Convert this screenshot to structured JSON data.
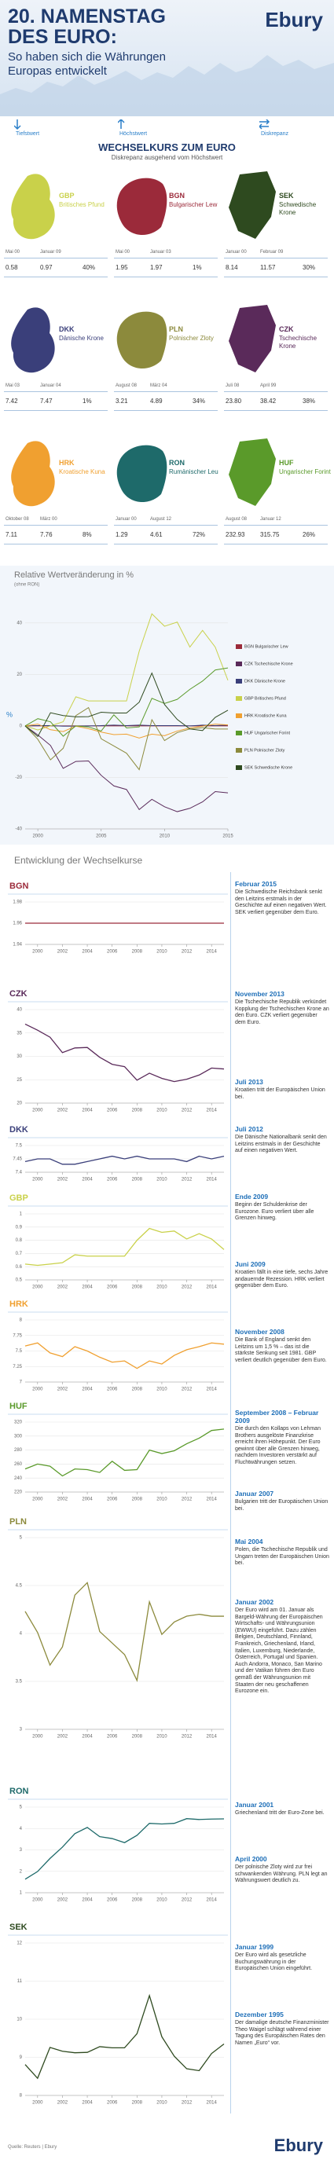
{
  "header": {
    "title": "20. NAMENSTAG DES EURO:",
    "subtitle": "So haben sich die Währungen Europas entwickelt",
    "logo": "Ebury"
  },
  "legend_labels": [
    "Tiefstwert",
    "Höchstwert",
    "Diskrepanz"
  ],
  "cards": {
    "title": "WECHSELKURS ZUM EURO",
    "subtitle": "Diskrepanz ausgehend vom Höchstwert",
    "items": [
      {
        "code": "GBP",
        "name": "Britisches Pfund",
        "color": "#c9d14a",
        "low_date": "Mai 00",
        "high_date": "Januar 09",
        "low": "0.58",
        "high": "0.97",
        "diff": "40%"
      },
      {
        "code": "BGN",
        "name": "Bulgarischer Lew",
        "color": "#9b2a3a",
        "low_date": "Mai 00",
        "high_date": "Januar 03",
        "low": "1.95",
        "high": "1.97",
        "diff": "1%"
      },
      {
        "code": "SEK",
        "name": "Schwedische Krone",
        "color": "#2e4a1f",
        "low_date": "Januar 00",
        "high_date": "Februar 09",
        "low": "8.14",
        "high": "11.57",
        "diff": "30%"
      },
      {
        "code": "DKK",
        "name": "Dänische Krone",
        "color": "#3a3f7a",
        "low_date": "Mai 03",
        "high_date": "Januar 04",
        "low": "7.42",
        "high": "7.47",
        "diff": "1%"
      },
      {
        "code": "PLN",
        "name": "Polnischer Zloty",
        "color": "#8c8a3c",
        "low_date": "August 08",
        "high_date": "März 04",
        "low": "3.21",
        "high": "4.89",
        "diff": "34%"
      },
      {
        "code": "CZK",
        "name": "Tschechische Krone",
        "color": "#5a2a5a",
        "low_date": "Juli 08",
        "high_date": "April 99",
        "low": "23.80",
        "high": "38.42",
        "diff": "38%"
      },
      {
        "code": "HRK",
        "name": "Kroatische Kuna",
        "color": "#f0a030",
        "low_date": "Oktober 08",
        "high_date": "März 00",
        "low": "7.11",
        "high": "7.76",
        "diff": "8%"
      },
      {
        "code": "RON",
        "name": "Rumänischer Leu",
        "color": "#1e6a6a",
        "low_date": "Januar 00",
        "high_date": "August 12",
        "low": "1.29",
        "high": "4.61",
        "diff": "72%"
      },
      {
        "code": "HUF",
        "name": "Ungarischer Forint",
        "color": "#5a9a2a",
        "low_date": "August 08",
        "high_date": "Januar 12",
        "low": "232.93",
        "high": "315.75",
        "diff": "26%"
      }
    ]
  },
  "chart_data": [
    {
      "type": "multiline",
      "title": "Relative Wertveränderung in %",
      "subtitle": "(ohne RON)",
      "y_label": "%",
      "x": [
        1999,
        2000,
        2001,
        2002,
        2003,
        2004,
        2005,
        2006,
        2007,
        2008,
        2009,
        2010,
        2011,
        2012,
        2013,
        2014,
        2015
      ],
      "xlim": [
        1999,
        2015
      ],
      "xticks": [
        2000,
        2005,
        2010,
        2015
      ],
      "ylim": [
        -40,
        50
      ],
      "yticks": [
        -40,
        -20,
        0,
        20,
        40
      ],
      "grid": true,
      "series": [
        {
          "name": "BGN Bulgarischer Lew",
          "color": "#9b2a3a",
          "values": [
            0,
            0,
            0,
            0,
            0,
            0,
            0,
            0,
            0,
            0,
            0,
            0,
            0,
            0,
            0,
            0,
            0
          ]
        },
        {
          "name": "CZK Tschechische Krone",
          "color": "#5a2a5a",
          "values": [
            0,
            -3.5,
            -7.6,
            -16.5,
            -13.8,
            -13.6,
            -19.2,
            -23.3,
            -24.7,
            -32.5,
            -28.5,
            -31.4,
            -33.3,
            -32,
            -29.5,
            -25.5,
            -26
          ]
        },
        {
          "name": "DKK Dänische Krone",
          "color": "#3a3f7a",
          "values": [
            0,
            0.1,
            0.1,
            -0.1,
            -0.1,
            0,
            0.1,
            0.3,
            0.1,
            0.3,
            0.1,
            0.1,
            0.1,
            0,
            0.3,
            0.1,
            0.3
          ]
        },
        {
          "name": "GBP Britisches Pfund",
          "color": "#c9d14a",
          "values": [
            0,
            -1.6,
            0,
            1.6,
            11.3,
            9.7,
            9.7,
            9.7,
            9.7,
            29,
            43.5,
            38.7,
            40.3,
            30.6,
            37.1,
            30.6,
            17.7
          ]
        },
        {
          "name": "HRK Kroatische Kuna",
          "color": "#f0a030",
          "values": [
            0,
            0.7,
            -1.5,
            -2.2,
            -0.1,
            -1.1,
            -2.4,
            -3.4,
            -3.2,
            -4.7,
            -3.2,
            -3.8,
            -2,
            -0.8,
            -0.1,
            0.7,
            0.4
          ]
        },
        {
          "name": "HUF Ungarischer Forint",
          "color": "#5a9a2a",
          "values": [
            0,
            2.8,
            1.6,
            -4,
            0,
            -0.4,
            -2,
            4.3,
            -0.8,
            -0.4,
            10.7,
            8.7,
            10.3,
            14.2,
            17.4,
            21.7,
            22.5
          ]
        },
        {
          "name": "PLN Polnischer Zloty",
          "color": "#8c8a3c",
          "values": [
            0,
            -5.2,
            -13.2,
            -8.7,
            4,
            7.1,
            -5,
            -7.8,
            -10.6,
            -17,
            2.4,
            -5.7,
            -2.6,
            -1.2,
            -0.7,
            -1.2,
            -1.2
          ]
        },
        {
          "name": "SEK Schwedische Krone",
          "color": "#2e4a1f",
          "values": [
            0,
            -4.1,
            5.1,
            4,
            3.5,
            3.6,
            5.3,
            5,
            5,
            9.2,
            20.5,
            8.3,
            2.5,
            -1.2,
            -1.8,
            3.3,
            6.1
          ]
        }
      ]
    },
    {
      "type": "line",
      "title": "BGN",
      "color": "#9b2a3a",
      "x": [
        1999,
        2000,
        2001,
        2002,
        2003,
        2004,
        2005,
        2006,
        2007,
        2008,
        2009,
        2010,
        2011,
        2012,
        2013,
        2014,
        2015
      ],
      "values": [
        1.96,
        1.96,
        1.96,
        1.96,
        1.96,
        1.96,
        1.96,
        1.96,
        1.96,
        1.96,
        1.96,
        1.96,
        1.96,
        1.96,
        1.96,
        1.96,
        1.96
      ],
      "xlim": [
        1999,
        2015
      ],
      "xticks": [
        2000,
        2002,
        2004,
        2006,
        2008,
        2010,
        2012,
        2014
      ],
      "ylim": [
        1.94,
        1.98
      ],
      "yticks": [
        1.94,
        1.96,
        1.98
      ],
      "grid": true
    },
    {
      "type": "line",
      "title": "CZK",
      "color": "#5a2a5a",
      "x": [
        1999,
        2000,
        2001,
        2002,
        2003,
        2004,
        2005,
        2006,
        2007,
        2008,
        2009,
        2010,
        2011,
        2012,
        2013,
        2014,
        2015
      ],
      "values": [
        36.9,
        35.6,
        34.1,
        30.8,
        31.8,
        31.9,
        29.8,
        28.3,
        27.8,
        24.9,
        26.4,
        25.3,
        24.6,
        25.1,
        26,
        27.5,
        27.3
      ],
      "xlim": [
        1999,
        2015
      ],
      "xticks": [
        2000,
        2002,
        2004,
        2006,
        2008,
        2010,
        2012,
        2014
      ],
      "ylim": [
        20,
        40
      ],
      "yticks": [
        20,
        25,
        30,
        35,
        40
      ],
      "grid": true
    },
    {
      "type": "line",
      "title": "DKK",
      "color": "#3a3f7a",
      "x": [
        1999,
        2000,
        2001,
        2002,
        2003,
        2004,
        2005,
        2006,
        2007,
        2008,
        2009,
        2010,
        2011,
        2012,
        2013,
        2014,
        2015
      ],
      "values": [
        7.44,
        7.45,
        7.45,
        7.43,
        7.43,
        7.44,
        7.45,
        7.46,
        7.45,
        7.46,
        7.45,
        7.45,
        7.45,
        7.44,
        7.46,
        7.45,
        7.46
      ],
      "xlim": [
        1999,
        2015
      ],
      "xticks": [
        2000,
        2002,
        2004,
        2006,
        2008,
        2010,
        2012,
        2014
      ],
      "ylim": [
        7.4,
        7.5
      ],
      "yticks": [
        7.4,
        7.45,
        7.5
      ],
      "grid": true
    },
    {
      "type": "line",
      "title": "GBP",
      "color": "#c9d14a",
      "x": [
        1999,
        2000,
        2001,
        2002,
        2003,
        2004,
        2005,
        2006,
        2007,
        2008,
        2009,
        2010,
        2011,
        2012,
        2013,
        2014,
        2015
      ],
      "values": [
        0.62,
        0.61,
        0.62,
        0.63,
        0.69,
        0.68,
        0.68,
        0.68,
        0.68,
        0.8,
        0.89,
        0.86,
        0.87,
        0.81,
        0.85,
        0.81,
        0.73
      ],
      "xlim": [
        1999,
        2015
      ],
      "xticks": [
        2000,
        2002,
        2004,
        2006,
        2008,
        2010,
        2012,
        2014
      ],
      "ylim": [
        0.5,
        1
      ],
      "yticks": [
        0.5,
        0.6,
        0.7,
        0.8,
        0.9,
        1
      ],
      "grid": true
    },
    {
      "type": "line",
      "title": "HRK",
      "color": "#f0a030",
      "x": [
        1999,
        2000,
        2001,
        2002,
        2003,
        2004,
        2005,
        2006,
        2007,
        2008,
        2009,
        2010,
        2011,
        2012,
        2013,
        2014,
        2015
      ],
      "values": [
        7.58,
        7.63,
        7.47,
        7.41,
        7.57,
        7.5,
        7.4,
        7.32,
        7.34,
        7.22,
        7.34,
        7.29,
        7.43,
        7.52,
        7.57,
        7.63,
        7.61
      ],
      "xlim": [
        1999,
        2015
      ],
      "xticks": [
        2000,
        2002,
        2004,
        2006,
        2008,
        2010,
        2012,
        2014
      ],
      "ylim": [
        7,
        8
      ],
      "yticks": [
        7,
        7.25,
        7.5,
        7.75,
        8
      ],
      "grid": true
    },
    {
      "type": "line",
      "title": "HUF",
      "color": "#5a9a2a",
      "x": [
        1999,
        2000,
        2001,
        2002,
        2003,
        2004,
        2005,
        2006,
        2007,
        2008,
        2009,
        2010,
        2011,
        2012,
        2013,
        2014,
        2015
      ],
      "values": [
        253,
        260,
        257,
        243,
        253,
        252,
        248,
        264,
        251,
        252,
        280,
        275,
        279,
        289,
        297,
        308,
        310
      ],
      "xlim": [
        1999,
        2015
      ],
      "xticks": [
        2000,
        2002,
        2004,
        2006,
        2008,
        2010,
        2012,
        2014
      ],
      "ylim": [
        220,
        320
      ],
      "yticks": [
        220,
        240,
        260,
        280,
        300,
        320
      ],
      "grid": true
    },
    {
      "type": "line",
      "title": "PLN",
      "color": "#8c8a3c",
      "x": [
        1999,
        2000,
        2001,
        2002,
        2003,
        2004,
        2005,
        2006,
        2007,
        2008,
        2009,
        2010,
        2011,
        2012,
        2013,
        2014,
        2015
      ],
      "values": [
        4.23,
        4.01,
        3.67,
        3.86,
        4.4,
        4.53,
        4.02,
        3.9,
        3.78,
        3.51,
        4.33,
        3.99,
        4.12,
        4.18,
        4.2,
        4.18,
        4.18
      ],
      "xlim": [
        1999,
        2015
      ],
      "xticks": [
        2000,
        2002,
        2004,
        2006,
        2008,
        2010,
        2012,
        2014
      ],
      "ylim": [
        3,
        5
      ],
      "yticks": [
        3,
        3.5,
        4,
        4.5,
        5
      ],
      "grid": true
    },
    {
      "type": "line",
      "title": "RON",
      "color": "#1e6a6a",
      "x": [
        1999,
        2000,
        2001,
        2002,
        2003,
        2004,
        2005,
        2006,
        2007,
        2008,
        2009,
        2010,
        2011,
        2012,
        2013,
        2014,
        2015
      ],
      "values": [
        1.63,
        1.99,
        2.6,
        3.13,
        3.76,
        4.05,
        3.62,
        3.53,
        3.34,
        3.68,
        4.24,
        4.21,
        4.24,
        4.46,
        4.42,
        4.44,
        4.45
      ],
      "xlim": [
        1999,
        2015
      ],
      "xticks": [
        2000,
        2002,
        2004,
        2006,
        2008,
        2010,
        2012,
        2014
      ],
      "ylim": [
        1,
        5
      ],
      "yticks": [
        1,
        2,
        3,
        4,
        5
      ],
      "grid": true
    },
    {
      "type": "line",
      "title": "SEK",
      "color": "#2e4a1f",
      "x": [
        1999,
        2000,
        2001,
        2002,
        2003,
        2004,
        2005,
        2006,
        2007,
        2008,
        2009,
        2010,
        2011,
        2012,
        2013,
        2014,
        2015
      ],
      "values": [
        8.81,
        8.45,
        9.26,
        9.16,
        9.12,
        9.13,
        9.28,
        9.25,
        9.25,
        9.62,
        10.62,
        9.54,
        9.03,
        8.7,
        8.65,
        9.1,
        9.35
      ],
      "xlim": [
        1999,
        2015
      ],
      "xticks": [
        2000,
        2002,
        2004,
        2006,
        2008,
        2010,
        2012,
        2014
      ],
      "ylim": [
        8,
        12
      ],
      "yticks": [
        8,
        9,
        10,
        11,
        12
      ],
      "grid": true
    }
  ],
  "section_title": "Entwicklung der Wechselkurse",
  "events": [
    {
      "date": "Februar 2015",
      "text": "Die Schwedische Reichsbank senkt den Leitzins erstmals in der Geschichte auf einen negativen Wert. SEK verliert gegenüber dem Euro."
    },
    {
      "date": "November 2013",
      "text": "Die Tschechische Republik verkündet Kopplung der Tschechischen Krone an den Euro. CZK verliert gegenüber dem Euro."
    },
    {
      "date": "Juli 2013",
      "text": "Kroatien tritt der Europäischen Union bei."
    },
    {
      "date": "Juli 2012",
      "text": "Die Dänische Nationalbank senkt den Leitzins erstmals in der Geschichte auf einen negativen Wert."
    },
    {
      "date": "Ende 2009",
      "text": "Beginn der Schuldenkrise der Eurozone. Euro verliert über alle Grenzen hinweg."
    },
    {
      "date": "Juni 2009",
      "text": "Kroatien fällt in eine tiefe, sechs Jahre andauernde Rezession. HRK verliert gegenüber dem Euro."
    },
    {
      "date": "November 2008",
      "text": "Die Bank of England senkt den Leitzins um 1,5 % – das ist die stärkste Senkung seit 1981. GBP verliert deutlich gegenüber dem Euro."
    },
    {
      "date": "September 2008 – Februar 2009",
      "text": "Die durch den Kollaps von Lehman Brothers ausgelöste Finanzkrise erreicht ihren Höhepunkt. Der Euro gewinnt über alle Grenzen hinweg, nachdem Investoren verstärkt auf Fluchtwährungen setzen."
    },
    {
      "date": "Januar 2007",
      "text": "Bulgarien tritt der Europäischen Union bei."
    },
    {
      "date": "Mai 2004",
      "text": "Polen, die Tschechische Republik und Ungarn treten der Europäischen Union bei."
    },
    {
      "date": "Januar 2002",
      "text": "Der Euro wird am 01. Januar als Bargeld-Währung der Europäischen Wirtschafts- und Währungsunion (EWWU) eingeführt. Dazu zählen Belgien, Deutschland, Finnland, Frankreich, Griechenland, Irland, Italien, Luxemburg, Niederlande, Österreich, Portugal und Spanien. Auch Andorra, Monaco, San Marino und der Vatikan führen den Euro gemäß der Währungsunion mit Staaten der neu geschaffenen Eurozone ein."
    },
    {
      "date": "Januar 2001",
      "text": "Griechenland tritt der Euro-Zone bei."
    },
    {
      "date": "April 2000",
      "text": "Der polnische Zloty wird zur frei schwankenden Währung. PLN legt an Währungswert deutlich zu."
    },
    {
      "date": "Januar 1999",
      "text": "Der Euro wird als gesetzliche Buchungswährung in der Europäischen Union eingeführt."
    },
    {
      "date": "Dezember 1995",
      "text": "Der damalige deutsche Finanzminister Theo Waigel schlägt während einer Tagung des Europäischen Rates den Namen „Euro“ vor."
    }
  ],
  "footer": {
    "source": "Quelle: Reuters | Ebury",
    "logo": "Ebury"
  }
}
